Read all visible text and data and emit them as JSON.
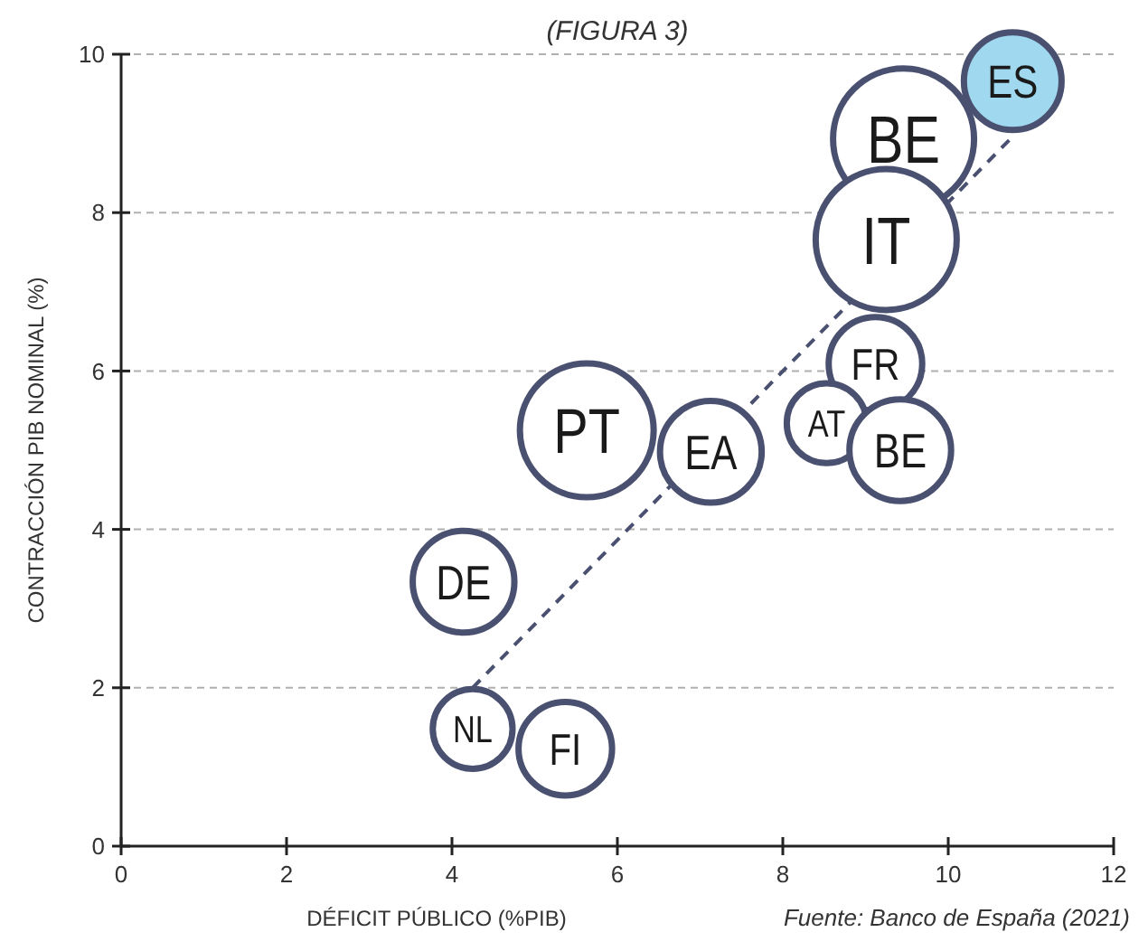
{
  "chart_data": {
    "type": "bubble",
    "title": "(FIGURA 3)",
    "xlabel": "DÉFICIT PÚBLICO (%PIB)",
    "ylabel": "CONTRACCIÓN PIB NOMINAL (%)",
    "annotations": [
      "Fuente: Banco de España (2021)"
    ],
    "xlim": [
      0,
      12
    ],
    "xticks": [
      0,
      2,
      4,
      6,
      8,
      10,
      12
    ],
    "ylim": [
      0,
      10
    ],
    "yticks": [
      0,
      2,
      4,
      6,
      8,
      10
    ],
    "grid": "y",
    "series": [
      {
        "type": "line",
        "line_style": "dashed",
        "marker": "none",
        "color": "#4a5170",
        "x": [
          4.25,
          10.75
        ],
        "values": [
          2.0,
          8.93
        ]
      },
      {
        "name": "BE",
        "color": "#ffffff",
        "x": [
          9.46
        ],
        "values": [
          8.93
        ],
        "sizes": [
          1
        ]
      },
      {
        "name": "ES",
        "color": "#a0d8ef",
        "x": [
          10.78
        ],
        "values": [
          9.66
        ],
        "sizes": [
          0.48
        ]
      },
      {
        "name": "IT",
        "color": "#ffffff",
        "x": [
          9.25
        ],
        "values": [
          7.66
        ],
        "sizes": [
          1
        ]
      },
      {
        "name": "FR",
        "color": "#ffffff",
        "x": [
          9.12
        ],
        "values": [
          6.09
        ],
        "sizes": [
          0.44
        ]
      },
      {
        "name": "AT",
        "color": "#ffffff",
        "x": [
          8.53
        ],
        "values": [
          5.34
        ],
        "sizes": [
          0.32
        ]
      },
      {
        "name": "BE",
        "color": "#ffffff",
        "x": [
          9.42
        ],
        "values": [
          5.0
        ],
        "sizes": [
          0.52
        ]
      },
      {
        "name": "EA",
        "color": "#ffffff",
        "x": [
          7.13
        ],
        "values": [
          4.98
        ],
        "sizes": [
          0.52
        ]
      },
      {
        "name": "PT",
        "color": "#ffffff",
        "x": [
          5.63
        ],
        "values": [
          5.25
        ],
        "sizes": [
          0.9
        ]
      },
      {
        "name": "DE",
        "color": "#ffffff",
        "x": [
          4.14
        ],
        "values": [
          3.34
        ],
        "sizes": [
          0.52
        ]
      },
      {
        "name": "NL",
        "color": "#ffffff",
        "x": [
          4.25
        ],
        "values": [
          1.48
        ],
        "sizes": [
          0.32
        ]
      },
      {
        "name": "FI",
        "color": "#ffffff",
        "x": [
          5.37
        ],
        "values": [
          1.23
        ],
        "sizes": [
          0.44
        ]
      }
    ]
  }
}
